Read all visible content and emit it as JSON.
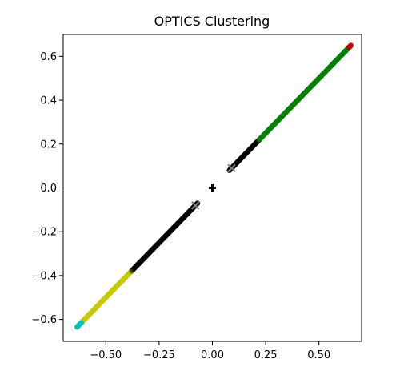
{
  "chart_data": {
    "type": "scatter",
    "title": "OPTICS Clustering",
    "xlabel": "",
    "ylabel": "",
    "xlim": [
      -0.7,
      0.7
    ],
    "ylim": [
      -0.7,
      0.7
    ],
    "x_ticks": [
      -0.5,
      -0.25,
      0.0,
      0.25,
      0.5
    ],
    "x_tick_labels": [
      "−0.50",
      "−0.25",
      "0.00",
      "0.25",
      "0.50"
    ],
    "y_ticks": [
      -0.6,
      -0.4,
      -0.2,
      0.0,
      0.2,
      0.4,
      0.6
    ],
    "y_tick_labels": [
      "−0.6",
      "−0.4",
      "−0.2",
      "0.0",
      "0.2",
      "0.4",
      "0.6"
    ],
    "grid": false,
    "series": [
      {
        "color": "#000000",
        "x_range": [
          0.08,
          0.22
        ],
        "marker": "dot"
      },
      {
        "color": "#008000",
        "x_range": [
          0.22,
          0.645
        ],
        "marker": "dot"
      },
      {
        "color": "#c00000",
        "x_range": [
          0.64,
          0.65
        ],
        "marker": "dot"
      },
      {
        "color": "#000000",
        "x_range": [
          -0.38,
          -0.07
        ],
        "marker": "dot"
      },
      {
        "color": "#c8c800",
        "x_range": [
          -0.62,
          -0.38
        ],
        "marker": "dot"
      },
      {
        "color": "#00bfbf",
        "x_range": [
          -0.635,
          -0.615
        ],
        "marker": "dot"
      },
      {
        "color": "#000000",
        "x_range": [
          -0.38,
          -0.3
        ],
        "marker": "dot-alpha"
      }
    ],
    "special_markers": [
      {
        "x": 0.0,
        "y": 0.0,
        "color": "#000000",
        "marker": "plus"
      },
      {
        "x": 0.09,
        "y": 0.09,
        "color": "#808080",
        "marker": "x"
      },
      {
        "x": -0.08,
        "y": -0.08,
        "color": "#808080",
        "marker": "x"
      }
    ]
  }
}
